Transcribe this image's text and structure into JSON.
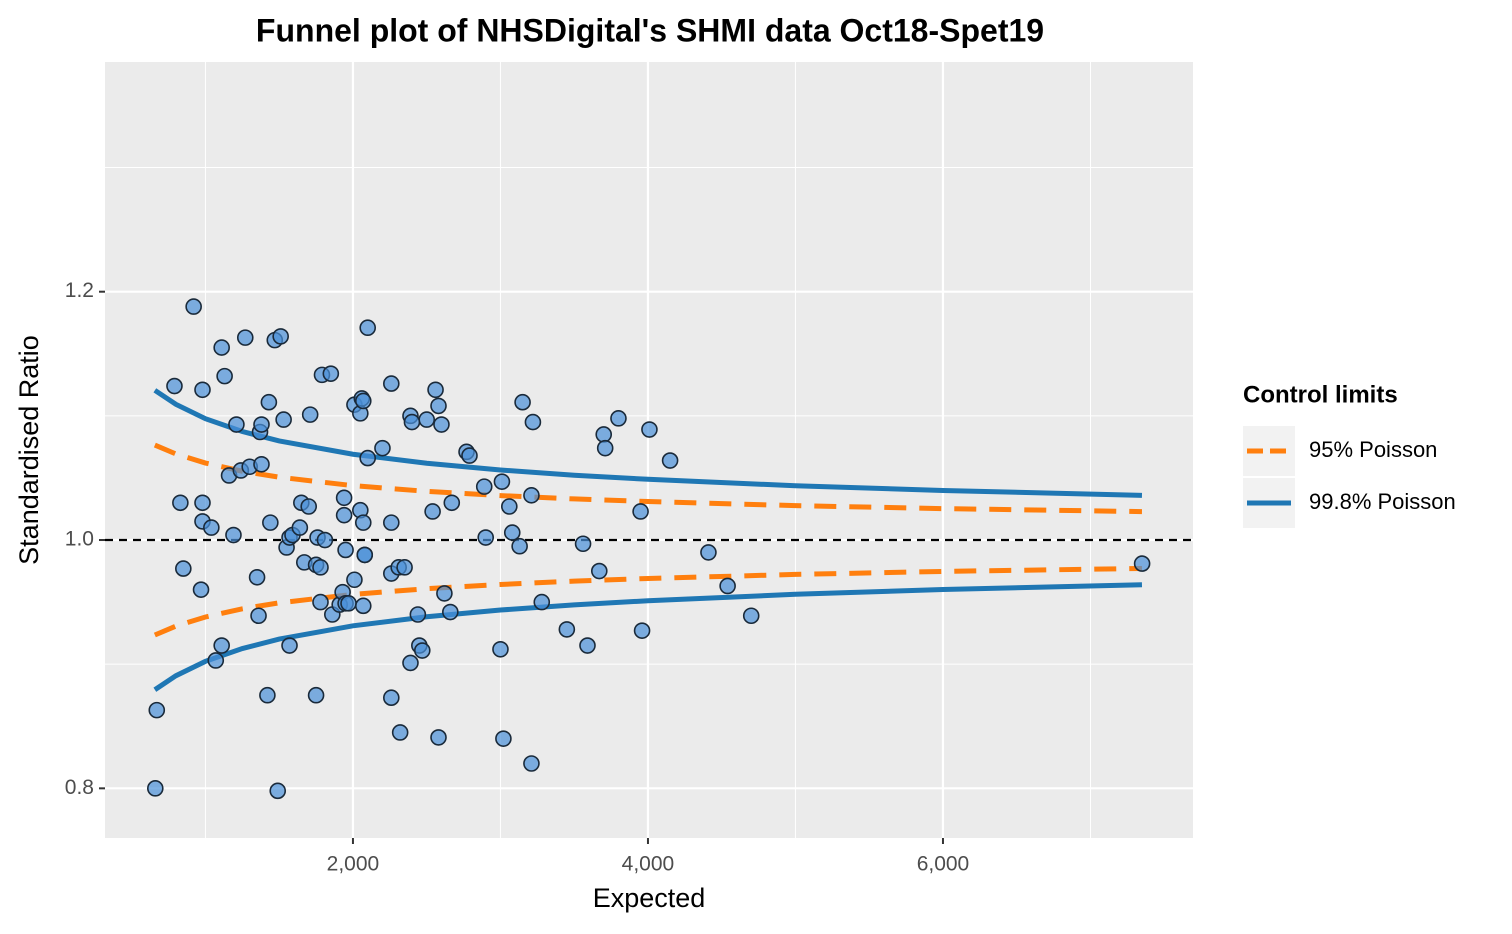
{
  "chart_data": {
    "type": "scatter",
    "title": "Funnel plot of NHSDigital's SHMI data Oct18-Spet19",
    "x_label": "Expected",
    "y_label": "Standardised Ratio",
    "xlim": [
      319,
      7695
    ],
    "ylim": [
      0.76,
      1.385
    ],
    "xticks": [
      {
        "value": 2000,
        "label": "2,000"
      },
      {
        "value": 4000,
        "label": "4,000"
      },
      {
        "value": 6000,
        "label": "6,000"
      }
    ],
    "yticks": [
      0.8,
      {
        "value": 1.0,
        "label": "1.0"
      },
      1.2
    ],
    "x_minor_grid": [
      1000,
      3000,
      5000,
      7000
    ],
    "y_minor_grid": [
      0.9,
      1.1,
      1.3
    ],
    "grid": true,
    "reference_line": 1,
    "point_color": "#4a90d9",
    "x": [
      660,
      670,
      790,
      830,
      850,
      920,
      970,
      980,
      980,
      980,
      1040,
      1070,
      1110,
      1110,
      1130,
      1160,
      1190,
      1210,
      1240,
      1270,
      1300,
      1350,
      1360,
      1370,
      1380,
      1380,
      1420,
      1430,
      1440,
      1470,
      1490,
      1510,
      1530,
      1550,
      1570,
      1570,
      1590,
      1640,
      1650,
      1670,
      1700,
      1710,
      1750,
      1750,
      1760,
      1780,
      1780,
      1790,
      1810,
      1850,
      1860,
      1910,
      1930,
      1940,
      1940,
      1950,
      1950,
      1970,
      2010,
      2010,
      2050,
      2050,
      2060,
      2070,
      2070,
      2070,
      2080,
      2080,
      2100,
      2100,
      2200,
      2260,
      2260,
      2260,
      2260,
      2310,
      2320,
      2350,
      2390,
      2390,
      2400,
      2440,
      2450,
      2470,
      2500,
      2540,
      2560,
      2580,
      2580,
      2600,
      2620,
      2660,
      2670,
      2770,
      2790,
      2890,
      2900,
      3000,
      3010,
      3020,
      3060,
      3080,
      3130,
      3150,
      3210,
      3210,
      3220,
      3280,
      3450,
      3560,
      3590,
      3670,
      3700,
      3710,
      3800,
      3950,
      3960,
      4010,
      4150,
      4410,
      4540,
      4700,
      7350
    ],
    "values": [
      0.8,
      0.863,
      1.124,
      1.03,
      0.977,
      1.188,
      0.96,
      1.121,
      1.03,
      1.015,
      1.01,
      0.903,
      0.915,
      1.155,
      1.132,
      1.052,
      1.004,
      1.093,
      1.056,
      1.163,
      1.059,
      0.97,
      0.939,
      1.087,
      1.061,
      1.093,
      0.875,
      1.111,
      1.014,
      1.161,
      0.798,
      1.164,
      1.097,
      0.994,
      0.915,
      1.002,
      1.004,
      1.01,
      1.03,
      0.982,
      1.027,
      1.101,
      0.98,
      0.875,
      1.002,
      0.978,
      0.95,
      1.133,
      1.0,
      1.134,
      0.94,
      0.948,
      0.958,
      1.034,
      1.02,
      0.992,
      0.949,
      0.949,
      1.109,
      0.968,
      1.102,
      1.024,
      1.114,
      1.112,
      1.014,
      0.947,
      0.988,
      0.988,
      1.066,
      1.171,
      1.074,
      0.873,
      1.126,
      0.973,
      1.014,
      0.978,
      0.845,
      0.978,
      0.901,
      1.1,
      1.095,
      0.94,
      0.915,
      0.911,
      1.097,
      1.023,
      1.121,
      1.108,
      0.841,
      1.093,
      0.957,
      0.942,
      1.03,
      1.071,
      1.068,
      1.043,
      1.002,
      0.912,
      1.047,
      0.84,
      1.027,
      1.006,
      0.995,
      1.111,
      0.82,
      1.036,
      1.095,
      0.95,
      0.928,
      0.997,
      0.915,
      0.975,
      1.085,
      1.074,
      1.098,
      1.023,
      0.927,
      1.089,
      1.064,
      0.99,
      0.963,
      0.939,
      0.981
    ],
    "control_limits": {
      "title": "Control limits",
      "x": [
        657,
        800,
        1000,
        1250,
        1500,
        2000,
        2500,
        3000,
        3500,
        4000,
        5000,
        6000,
        7349
      ],
      "series": [
        {
          "name": "95% Poisson",
          "color": "#ff7f0e",
          "dashed": true,
          "upper": [
            1.0765,
            1.0693,
            1.062,
            1.0554,
            1.0506,
            1.0438,
            1.0392,
            1.0358,
            1.0331,
            1.031,
            1.0277,
            1.0253,
            1.0229
          ],
          "lower": [
            0.9235,
            0.9307,
            0.938,
            0.9446,
            0.9494,
            0.9562,
            0.9608,
            0.9642,
            0.9669,
            0.969,
            0.9723,
            0.9747,
            0.9771
          ]
        },
        {
          "name": "99.8% Poisson",
          "color": "#1f77b4",
          "dashed": false,
          "upper": [
            1.1206,
            1.1093,
            1.0977,
            1.0874,
            1.0798,
            1.0691,
            1.0618,
            1.0564,
            1.0522,
            1.0489,
            1.0437,
            1.0399,
            1.036
          ],
          "lower": [
            0.8794,
            0.8907,
            0.9023,
            0.9126,
            0.9202,
            0.9309,
            0.9382,
            0.9436,
            0.9478,
            0.9511,
            0.9563,
            0.9601,
            0.964
          ]
        }
      ]
    }
  }
}
